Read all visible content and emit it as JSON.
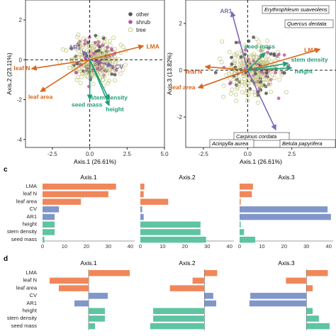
{
  "colors": {
    "other": "#555555",
    "shrub": "#b2579b",
    "tree": "#c7c98a",
    "arrow_orange": "#d9661c",
    "arrow_purple": "#7a6bb3",
    "arrow_green": "#1f9e7a",
    "bar_orange": "#f0875a",
    "bar_blue": "#8196c9",
    "bar_green": "#5ec4a1"
  },
  "panel_labels": {
    "c": "c",
    "d": "d"
  },
  "chart_data": [
    {
      "type": "scatter",
      "panel": "a",
      "xlabel": "Axis.1 (26.61%)",
      "ylabel": "Axis.2 (23.11%)",
      "xlim": [
        -4.3,
        5.0
      ],
      "ylim": [
        -4.4,
        3.0
      ],
      "xticks": [
        -2.5,
        0.0,
        2.5,
        5.0
      ],
      "xtick_labels": [
        "-2.5",
        "0.0",
        "2.5",
        "5.0"
      ],
      "yticks": [
        -4,
        -2,
        0,
        2
      ],
      "ytick_labels": [
        "-4",
        "-2",
        "0",
        "2"
      ],
      "legend": [
        "other",
        "shrub",
        "tree"
      ],
      "legend_position": "top-right",
      "arrows": [
        {
          "label": "LMA",
          "x": 3.6,
          "y": 0.7,
          "group": "orange"
        },
        {
          "label": "leaf N",
          "x": -3.9,
          "y": -0.45,
          "group": "orange"
        },
        {
          "label": "leaf area",
          "x": -3.3,
          "y": -1.6,
          "group": "orange"
        },
        {
          "label": "AR1",
          "x": -0.5,
          "y": 0.45,
          "group": "purple"
        },
        {
          "label": "CV",
          "x": 1.5,
          "y": -0.3,
          "group": "purple"
        },
        {
          "label": "stem density",
          "x": 1.3,
          "y": -2.0,
          "group": "green"
        },
        {
          "label": "height",
          "x": 1.3,
          "y": -2.3,
          "group": "green"
        },
        {
          "label": "seed mass",
          "x": 0.0,
          "y": -2.0,
          "group": "green"
        }
      ]
    },
    {
      "type": "scatter",
      "panel": "b",
      "xlabel": "Axis.1 (26.61%)",
      "ylabel": "Axis.3 (13.82%)",
      "xlim": [
        -3.5,
        5.0
      ],
      "ylim": [
        -3.3,
        3.0
      ],
      "xticks": [
        -2.5,
        0.0,
        2.5
      ],
      "xtick_labels": [
        "-2.5",
        "0.0",
        "2.5"
      ],
      "yticks": [
        -2,
        0,
        2
      ],
      "ytick_labels": [
        "-2",
        "0",
        "2"
      ],
      "species_labels": [
        "Erythrophleum suaveolens",
        "Quercus dentata",
        "Carpinus cordata",
        "Acinpylla aurea",
        "Betula papyrifera"
      ],
      "arrows": [
        {
          "label": "LMA",
          "x": 4.1,
          "y": 0.9,
          "group": "orange"
        },
        {
          "label": "leaf area",
          "x": -2.8,
          "y": -0.75,
          "group": "orange"
        },
        {
          "label": "leaf N",
          "x": -2.4,
          "y": 0.15,
          "group": "orange"
        },
        {
          "label": "AR1",
          "x": -0.9,
          "y": 2.5,
          "group": "purple"
        },
        {
          "label": "CV",
          "x": 1.6,
          "y": -2.55,
          "group": "purple"
        },
        {
          "label": "seed mass",
          "x": 1.0,
          "y": 0.75,
          "group": "green"
        },
        {
          "label": "stem density",
          "x": 2.3,
          "y": 0.3,
          "group": "green"
        },
        {
          "label": "height",
          "x": 2.5,
          "y": 0.1,
          "group": "green"
        }
      ]
    },
    {
      "type": "bar",
      "panel": "c",
      "orientation": "horizontal",
      "categories": [
        "LMA",
        "leaf N",
        "leaf area",
        "CV",
        "AR1",
        "height",
        "stem density",
        "seed mass"
      ],
      "category_groups": [
        "orange",
        "orange",
        "orange",
        "blue",
        "blue",
        "green",
        "green",
        "green"
      ],
      "xlim": [
        0,
        42
      ],
      "xticks": [
        0,
        10,
        20,
        30,
        40
      ],
      "xtick_labels": [
        "0",
        "10",
        "20",
        "30",
        "40"
      ],
      "series": [
        {
          "name": "Axis.1",
          "values": [
            33.5,
            30,
            17.5,
            7.5,
            5.5,
            5.5,
            5.5,
            0.8
          ]
        },
        {
          "name": "Axis.2",
          "values": [
            1.8,
            1.5,
            12.5,
            0.8,
            1.5,
            27,
            27,
            29.5
          ]
        },
        {
          "name": "Axis.3",
          "values": [
            6,
            5.5,
            0.5,
            39.5,
            41,
            0.5,
            2,
            7
          ]
        }
      ]
    },
    {
      "type": "bar",
      "panel": "d",
      "orientation": "horizontal",
      "categories": [
        "LMA",
        "leaf N",
        "leaf area",
        "CV",
        "AR1",
        "height",
        "stem density",
        "seed mass"
      ],
      "category_groups": [
        "orange",
        "orange",
        "orange",
        "blue",
        "blue",
        "green",
        "green",
        "green"
      ],
      "series": [
        {
          "name": "Axis.1",
          "xlim": [
            -0.65,
            0.65
          ],
          "values": [
            0.58,
            -0.55,
            -0.42,
            0.27,
            -0.2,
            0.23,
            0.23,
            0.09
          ]
        },
        {
          "name": "Axis.2",
          "xlim": [
            -0.65,
            0.3
          ],
          "values": [
            0.13,
            -0.12,
            -0.35,
            0.09,
            0.12,
            -0.52,
            -0.52,
            -0.55
          ]
        },
        {
          "name": "Axis.3",
          "xlim": [
            -0.75,
            0.3
          ],
          "values": [
            0.24,
            -0.23,
            0.07,
            -0.63,
            -0.64,
            0.07,
            0.14,
            0.26
          ]
        }
      ]
    }
  ]
}
